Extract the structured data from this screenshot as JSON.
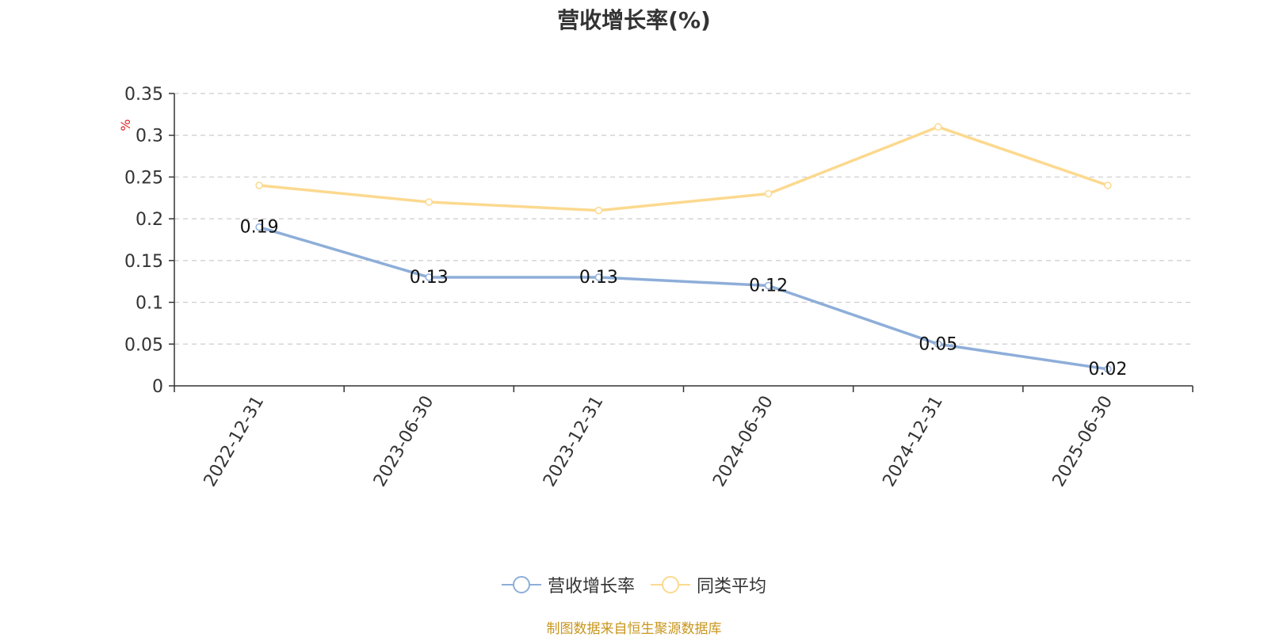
{
  "chart_data": {
    "type": "line",
    "title": "营收增长率(%)",
    "ylabel": "%",
    "categories": [
      "2022-12-31",
      "2023-06-30",
      "2023-12-31",
      "2024-06-30",
      "2024-12-31",
      "2025-06-30"
    ],
    "ylim": [
      0,
      0.35
    ],
    "yticks": [
      0,
      0.05,
      0.1,
      0.15,
      0.2,
      0.25,
      0.3,
      0.35
    ],
    "grid": true,
    "legend_position": "bottom",
    "series": [
      {
        "name": "营收增长率",
        "values": [
          0.19,
          0.13,
          0.13,
          0.12,
          0.05,
          0.02
        ],
        "color": "#8eaed9",
        "labels": true
      },
      {
        "name": "同类平均",
        "values": [
          0.24,
          0.22,
          0.21,
          0.23,
          0.31,
          0.24
        ],
        "color": "#fcd98f",
        "labels": false
      }
    ]
  },
  "source": "制图数据来自恒生聚源数据库"
}
